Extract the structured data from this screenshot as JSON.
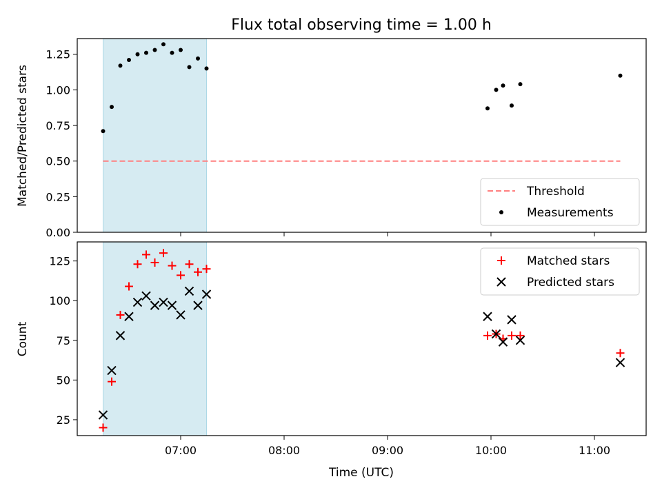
{
  "title": "Flux total observing time = 1.00 h",
  "xlabel": "Time (UTC)",
  "x_ticks": [
    "07:00",
    "08:00",
    "09:00",
    "10:00",
    "11:00"
  ],
  "colors": {
    "shade": "#add8e6",
    "threshold": "#ff7f7f",
    "matched": "#ff0000",
    "predicted": "#000000",
    "measurement": "#000000"
  },
  "chart_data": [
    {
      "type": "scatter",
      "ylabel": "Matched/Predicted stars",
      "x_range": [
        "06:00",
        "11:30"
      ],
      "ylim": [
        0,
        1.36
      ],
      "y_ticks": [
        "0.00",
        "0.25",
        "0.50",
        "0.75",
        "1.00",
        "1.25"
      ],
      "shaded_span": [
        "06:15",
        "07:15"
      ],
      "threshold": {
        "name": "Threshold",
        "value": 0.5,
        "x_start": "06:15",
        "x_end": "11:15"
      },
      "legend": [
        "Threshold",
        "Measurements"
      ],
      "legend_position": "lower right",
      "series": [
        {
          "name": "Measurements",
          "x": [
            "06:15",
            "06:20",
            "06:25",
            "06:30",
            "06:35",
            "06:40",
            "06:45",
            "06:50",
            "06:55",
            "07:00",
            "07:05",
            "07:10",
            "07:15",
            "09:58",
            "10:03",
            "10:07",
            "10:12",
            "10:17",
            "11:15"
          ],
          "y": [
            0.71,
            0.88,
            1.17,
            1.21,
            1.25,
            1.26,
            1.28,
            1.32,
            1.26,
            1.28,
            1.16,
            1.22,
            1.15,
            0.87,
            1.0,
            1.03,
            0.89,
            1.04,
            1.1
          ]
        }
      ]
    },
    {
      "type": "scatter",
      "ylabel": "Count",
      "x_range": [
        "06:00",
        "11:30"
      ],
      "ylim": [
        15,
        137
      ],
      "y_ticks": [
        "25",
        "50",
        "75",
        "100",
        "125"
      ],
      "shaded_span": [
        "06:15",
        "07:15"
      ],
      "legend": [
        "Matched stars",
        "Predicted stars"
      ],
      "legend_position": "upper right",
      "series": [
        {
          "name": "Matched stars",
          "marker": "+",
          "x": [
            "06:15",
            "06:20",
            "06:25",
            "06:30",
            "06:35",
            "06:40",
            "06:45",
            "06:50",
            "06:55",
            "07:00",
            "07:05",
            "07:10",
            "07:15",
            "09:58",
            "10:03",
            "10:07",
            "10:12",
            "10:17",
            "11:15"
          ],
          "y": [
            20,
            49,
            91,
            109,
            123,
            129,
            124,
            130,
            122,
            116,
            123,
            118,
            120,
            78,
            79,
            76,
            78,
            78,
            67
          ]
        },
        {
          "name": "Predicted stars",
          "marker": "x",
          "x": [
            "06:15",
            "06:20",
            "06:25",
            "06:30",
            "06:35",
            "06:40",
            "06:45",
            "06:50",
            "06:55",
            "07:00",
            "07:05",
            "07:10",
            "07:15",
            "09:58",
            "10:03",
            "10:07",
            "10:12",
            "10:17",
            "11:15"
          ],
          "y": [
            28,
            56,
            78,
            90,
            99,
            103,
            97,
            99,
            97,
            91,
            106,
            97,
            104,
            90,
            79,
            74,
            88,
            75,
            61
          ]
        }
      ]
    }
  ]
}
